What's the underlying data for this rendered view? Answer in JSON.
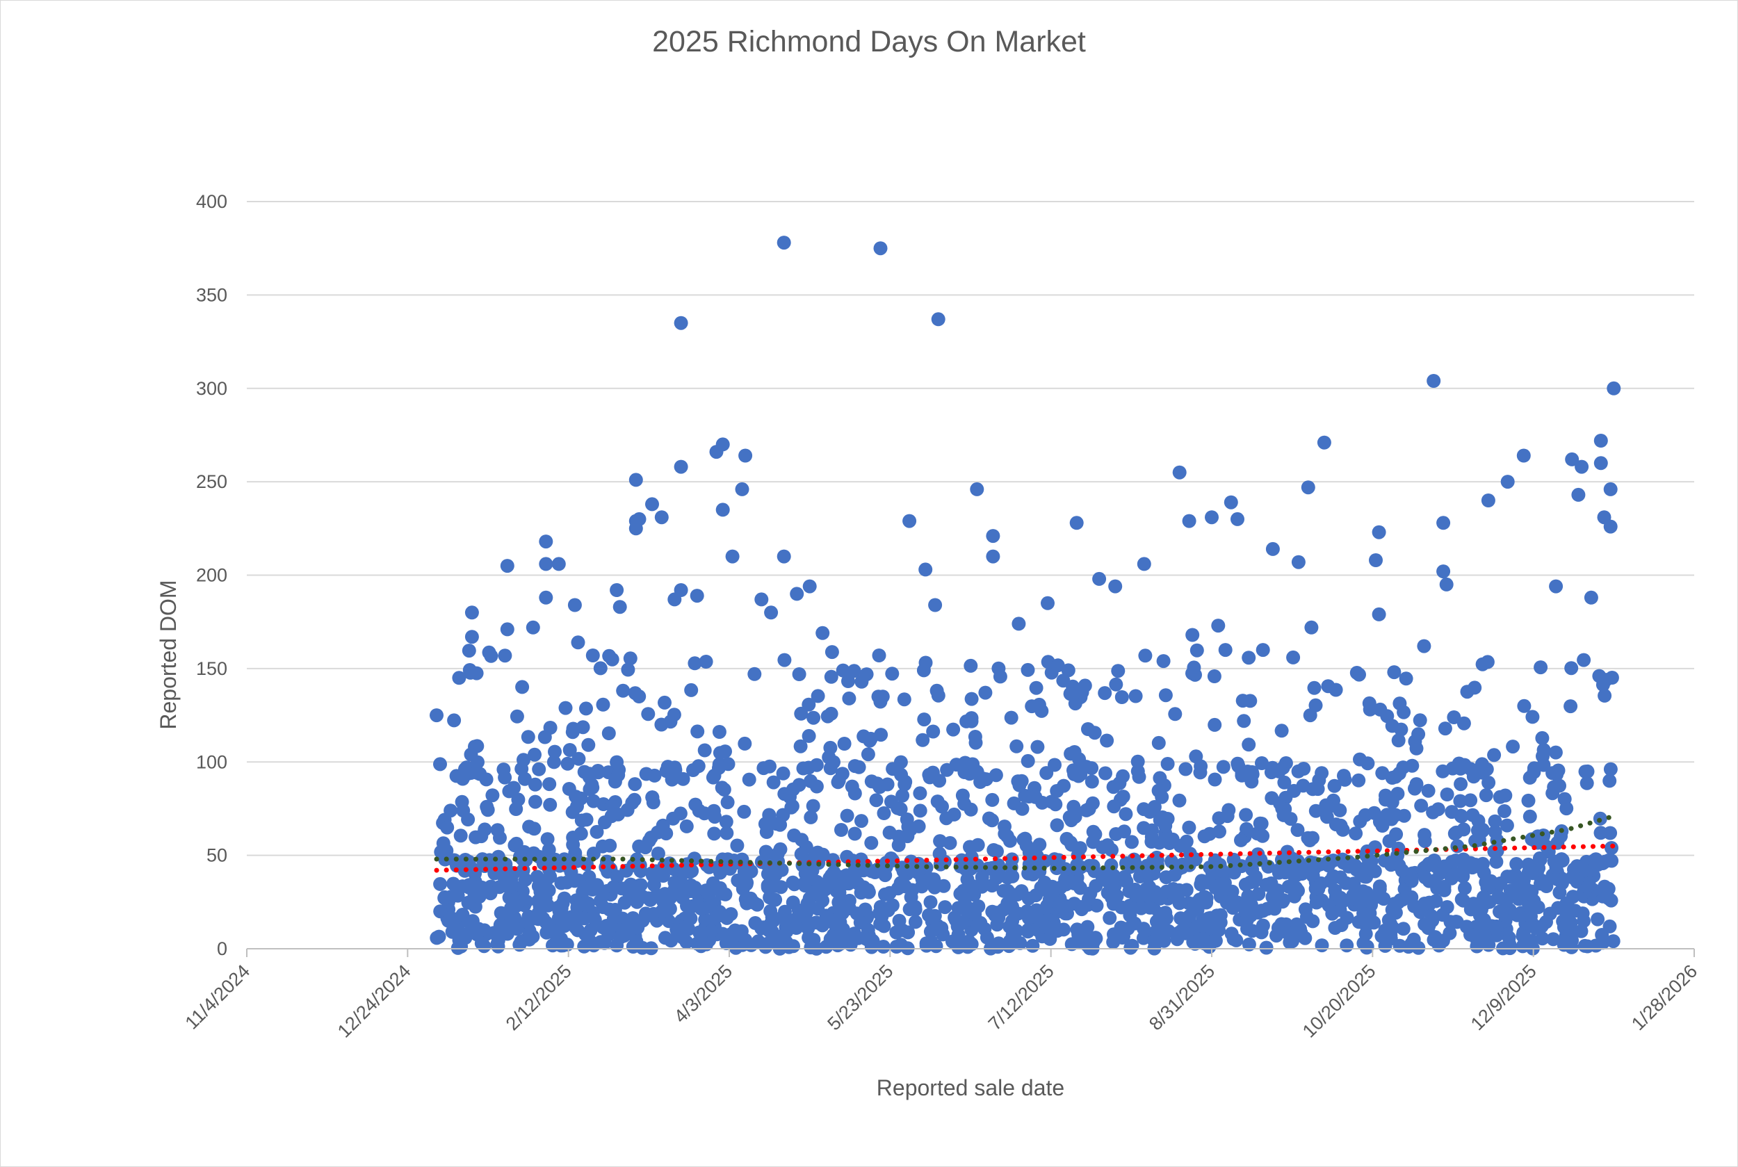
{
  "chart_data": {
    "type": "scatter",
    "title": "2025 Richmond Days On Market",
    "xlabel": "Reported sale date",
    "ylabel": "Reported DOM",
    "x_type": "date",
    "xlim": [
      "2024-11-04",
      "2026-01-28"
    ],
    "x_tick_labels": [
      "11/4/2024",
      "12/24/2024",
      "2/12/2025",
      "4/3/2025",
      "5/23/2025",
      "7/12/2025",
      "8/31/2025",
      "10/20/2025",
      "12/9/2025",
      "1/28/2026"
    ],
    "x_ticks": [
      "2024-11-04",
      "2024-12-24",
      "2025-02-12",
      "2025-04-03",
      "2025-05-23",
      "2025-07-12",
      "2025-08-31",
      "2025-10-20",
      "2025-12-09",
      "2026-01-28"
    ],
    "ylim": [
      0,
      400
    ],
    "y_ticks": [
      0,
      50,
      100,
      150,
      200,
      250,
      300,
      350,
      400
    ],
    "y_tick_labels": [
      "0",
      "50",
      "100",
      "150",
      "200",
      "250",
      "300",
      "350",
      "400"
    ],
    "grid": true,
    "legend": "none",
    "colors": {
      "points": "#4472c4",
      "trend_red": "#ff0000",
      "trend_green": "#375623"
    },
    "series": [
      {
        "type": "scatter",
        "points": [
          {
            "x": "2025-01-02",
            "y": 125
          },
          {
            "x": "2025-01-09",
            "y": 145
          },
          {
            "x": "2025-01-13",
            "y": 180
          },
          {
            "x": "2025-01-13",
            "y": 167
          },
          {
            "x": "2025-01-24",
            "y": 205
          },
          {
            "x": "2025-01-24",
            "y": 171
          },
          {
            "x": "2025-02-01",
            "y": 172
          },
          {
            "x": "2025-02-05",
            "y": 218
          },
          {
            "x": "2025-02-05",
            "y": 206
          },
          {
            "x": "2025-02-05",
            "y": 188
          },
          {
            "x": "2025-02-09",
            "y": 206
          },
          {
            "x": "2025-02-14",
            "y": 184
          },
          {
            "x": "2025-02-15",
            "y": 164
          },
          {
            "x": "2025-02-27",
            "y": 192
          },
          {
            "x": "2025-02-28",
            "y": 183
          },
          {
            "x": "2025-03-05",
            "y": 251
          },
          {
            "x": "2025-03-05",
            "y": 229
          },
          {
            "x": "2025-03-05",
            "y": 225
          },
          {
            "x": "2025-03-06",
            "y": 230
          },
          {
            "x": "2025-03-10",
            "y": 238
          },
          {
            "x": "2025-03-13",
            "y": 231
          },
          {
            "x": "2025-03-17",
            "y": 187
          },
          {
            "x": "2025-03-19",
            "y": 335
          },
          {
            "x": "2025-03-19",
            "y": 258
          },
          {
            "x": "2025-03-19",
            "y": 192
          },
          {
            "x": "2025-03-24",
            "y": 189
          },
          {
            "x": "2025-03-30",
            "y": 266
          },
          {
            "x": "2025-04-01",
            "y": 270
          },
          {
            "x": "2025-04-01",
            "y": 235
          },
          {
            "x": "2025-04-04",
            "y": 210
          },
          {
            "x": "2025-04-07",
            "y": 246
          },
          {
            "x": "2025-04-08",
            "y": 264
          },
          {
            "x": "2025-04-13",
            "y": 187
          },
          {
            "x": "2025-04-16",
            "y": 180
          },
          {
            "x": "2025-04-20",
            "y": 378
          },
          {
            "x": "2025-04-20",
            "y": 210
          },
          {
            "x": "2025-04-24",
            "y": 190
          },
          {
            "x": "2025-04-28",
            "y": 194
          },
          {
            "x": "2025-05-02",
            "y": 169
          },
          {
            "x": "2025-05-20",
            "y": 375
          },
          {
            "x": "2025-05-29",
            "y": 229
          },
          {
            "x": "2025-06-03",
            "y": 203
          },
          {
            "x": "2025-06-06",
            "y": 184
          },
          {
            "x": "2025-06-07",
            "y": 337
          },
          {
            "x": "2025-06-19",
            "y": 246
          },
          {
            "x": "2025-06-24",
            "y": 221
          },
          {
            "x": "2025-06-24",
            "y": 210
          },
          {
            "x": "2025-07-02",
            "y": 174
          },
          {
            "x": "2025-07-11",
            "y": 185
          },
          {
            "x": "2025-07-20",
            "y": 228
          },
          {
            "x": "2025-07-27",
            "y": 198
          },
          {
            "x": "2025-08-01",
            "y": 194
          },
          {
            "x": "2025-08-10",
            "y": 206
          },
          {
            "x": "2025-08-16",
            "y": 154
          },
          {
            "x": "2025-08-21",
            "y": 255
          },
          {
            "x": "2025-08-24",
            "y": 229
          },
          {
            "x": "2025-08-25",
            "y": 168
          },
          {
            "x": "2025-08-31",
            "y": 231
          },
          {
            "x": "2025-09-02",
            "y": 173
          },
          {
            "x": "2025-09-06",
            "y": 239
          },
          {
            "x": "2025-09-08",
            "y": 230
          },
          {
            "x": "2025-09-19",
            "y": 214
          },
          {
            "x": "2025-09-27",
            "y": 207
          },
          {
            "x": "2025-09-30",
            "y": 247
          },
          {
            "x": "2025-10-01",
            "y": 172
          },
          {
            "x": "2025-10-05",
            "y": 271
          },
          {
            "x": "2025-10-21",
            "y": 208
          },
          {
            "x": "2025-10-22",
            "y": 223
          },
          {
            "x": "2025-10-22",
            "y": 179
          },
          {
            "x": "2025-11-05",
            "y": 162
          },
          {
            "x": "2025-11-08",
            "y": 304
          },
          {
            "x": "2025-11-11",
            "y": 228
          },
          {
            "x": "2025-11-11",
            "y": 202
          },
          {
            "x": "2025-11-12",
            "y": 195
          },
          {
            "x": "2025-11-25",
            "y": 240
          },
          {
            "x": "2025-12-01",
            "y": 250
          },
          {
            "x": "2025-12-06",
            "y": 264
          },
          {
            "x": "2025-12-16",
            "y": 194
          },
          {
            "x": "2025-12-21",
            "y": 262
          },
          {
            "x": "2025-12-23",
            "y": 243
          },
          {
            "x": "2025-12-24",
            "y": 258
          },
          {
            "x": "2025-12-27",
            "y": 188
          },
          {
            "x": "2025-12-30",
            "y": 272
          },
          {
            "x": "2025-12-30",
            "y": 260
          },
          {
            "x": "2025-12-31",
            "y": 231
          },
          {
            "x": "2026-01-02",
            "y": 246
          },
          {
            "x": "2026-01-02",
            "y": 226
          },
          {
            "x": "2026-01-03",
            "y": 300
          }
        ]
      },
      {
        "type": "line",
        "style": "dotted",
        "color": "#ff0000",
        "points": [
          {
            "x": "2025-01-02",
            "y": 42
          },
          {
            "x": "2026-01-03",
            "y": 55
          }
        ]
      },
      {
        "type": "line",
        "style": "dotted",
        "color": "#375623",
        "points": [
          {
            "x": "2025-01-02",
            "y": 48
          },
          {
            "x": "2025-03-01",
            "y": 48
          },
          {
            "x": "2025-04-15",
            "y": 46
          },
          {
            "x": "2025-06-01",
            "y": 44
          },
          {
            "x": "2025-07-15",
            "y": 43
          },
          {
            "x": "2025-09-01",
            "y": 44
          },
          {
            "x": "2025-10-15",
            "y": 49
          },
          {
            "x": "2025-11-20",
            "y": 55
          },
          {
            "x": "2025-12-20",
            "y": 64
          },
          {
            "x": "2026-01-03",
            "y": 71
          }
        ]
      }
    ]
  }
}
